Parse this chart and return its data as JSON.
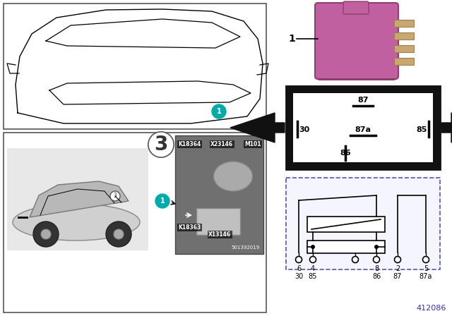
{
  "bg_color": "#ffffff",
  "teal_color": "#00aaaa",
  "relay_color": "#c060a0",
  "diagram_number": "412086",
  "pin_labels_row1": [
    "6",
    "4",
    "",
    "8",
    "2",
    "5"
  ],
  "pin_labels_row2": [
    "30",
    "85",
    "",
    "86",
    "87",
    "87a"
  ],
  "connector_labels_inside": [
    "87",
    "87a",
    "85",
    "86",
    "30"
  ]
}
